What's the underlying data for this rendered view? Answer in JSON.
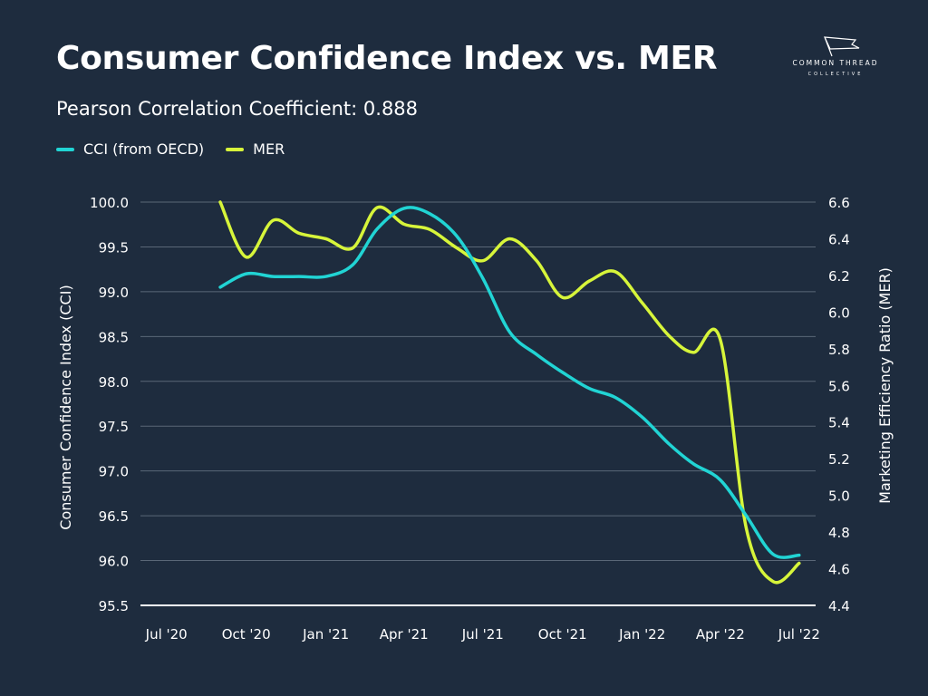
{
  "header": {
    "title": "Consumer Confidence Index vs. MER",
    "subtitle": "Pearson Correlation Coefficient: 0.888"
  },
  "logo": {
    "name": "COMMON THREAD",
    "sub": "COLLECTIVE"
  },
  "colors": {
    "background": "#1e2c3e",
    "cci": "#21d4d4",
    "mer": "#d7f53a",
    "grid": "#5a6777",
    "text": "#ffffff"
  },
  "chart_data": {
    "type": "line",
    "title": "Consumer Confidence Index vs. MER",
    "subtitle": "Pearson Correlation Coefficient: 0.888",
    "legend_position": "top-left",
    "grid": true,
    "x_ticks": [
      "Jul '20",
      "Oct '20",
      "Jan '21",
      "Apr '21",
      "Jul '21",
      "Oct '21",
      "Jan '22",
      "Apr '22",
      "Jul '22"
    ],
    "y_left": {
      "label": "Consumer Confidence Index (CCI)",
      "range": [
        95.5,
        100.0
      ],
      "ticks": [
        "95.5",
        "96.0",
        "96.5",
        "97.0",
        "97.5",
        "98.0",
        "98.5",
        "99.0",
        "99.5",
        "100.0"
      ]
    },
    "y_right": {
      "label": "Marketing Efficiency Ratio (MER)",
      "range": [
        4.4,
        6.6
      ],
      "ticks": [
        "4.4",
        "4.6",
        "4.8",
        "5.0",
        "5.2",
        "5.4",
        "5.6",
        "5.8",
        "6.0",
        "6.2",
        "6.4",
        "6.6"
      ]
    },
    "series": [
      {
        "name": "CCI (from OECD)",
        "axis": "left",
        "color": "#21d4d4",
        "points": [
          [
            "2020-09-01",
            99.05
          ],
          [
            "2020-10-01",
            99.2
          ],
          [
            "2020-11-01",
            99.17
          ],
          [
            "2020-12-01",
            99.17
          ],
          [
            "2021-01-01",
            99.17
          ],
          [
            "2021-02-01",
            99.3
          ],
          [
            "2021-03-01",
            99.7
          ],
          [
            "2021-04-01",
            99.93
          ],
          [
            "2021-05-01",
            99.87
          ],
          [
            "2021-06-01",
            99.62
          ],
          [
            "2021-07-01",
            99.15
          ],
          [
            "2021-08-01",
            98.55
          ],
          [
            "2021-09-01",
            98.3
          ],
          [
            "2021-10-01",
            98.1
          ],
          [
            "2021-11-01",
            97.92
          ],
          [
            "2021-12-01",
            97.82
          ],
          [
            "2022-01-01",
            97.6
          ],
          [
            "2022-02-01",
            97.3
          ],
          [
            "2022-03-01",
            97.08
          ],
          [
            "2022-04-01",
            96.9
          ],
          [
            "2022-05-01",
            96.5
          ],
          [
            "2022-06-01",
            96.07
          ],
          [
            "2022-07-01",
            96.06
          ]
        ]
      },
      {
        "name": "MER",
        "axis": "right",
        "color": "#d7f53a",
        "points": [
          [
            "2020-09-01",
            6.6
          ],
          [
            "2020-10-01",
            6.3
          ],
          [
            "2020-11-01",
            6.5
          ],
          [
            "2020-12-01",
            6.43
          ],
          [
            "2021-01-01",
            6.4
          ],
          [
            "2021-02-01",
            6.35
          ],
          [
            "2021-03-01",
            6.57
          ],
          [
            "2021-04-01",
            6.48
          ],
          [
            "2021-05-01",
            6.45
          ],
          [
            "2021-06-01",
            6.35
          ],
          [
            "2021-07-01",
            6.28
          ],
          [
            "2021-08-01",
            6.4
          ],
          [
            "2021-09-01",
            6.28
          ],
          [
            "2021-10-01",
            6.08
          ],
          [
            "2021-11-01",
            6.17
          ],
          [
            "2021-12-01",
            6.22
          ],
          [
            "2022-01-01",
            6.05
          ],
          [
            "2022-02-01",
            5.87
          ],
          [
            "2022-03-01",
            5.78
          ],
          [
            "2022-04-01",
            5.85
          ],
          [
            "2022-05-01",
            4.82
          ],
          [
            "2022-06-01",
            4.53
          ],
          [
            "2022-07-01",
            4.63
          ]
        ]
      }
    ]
  }
}
